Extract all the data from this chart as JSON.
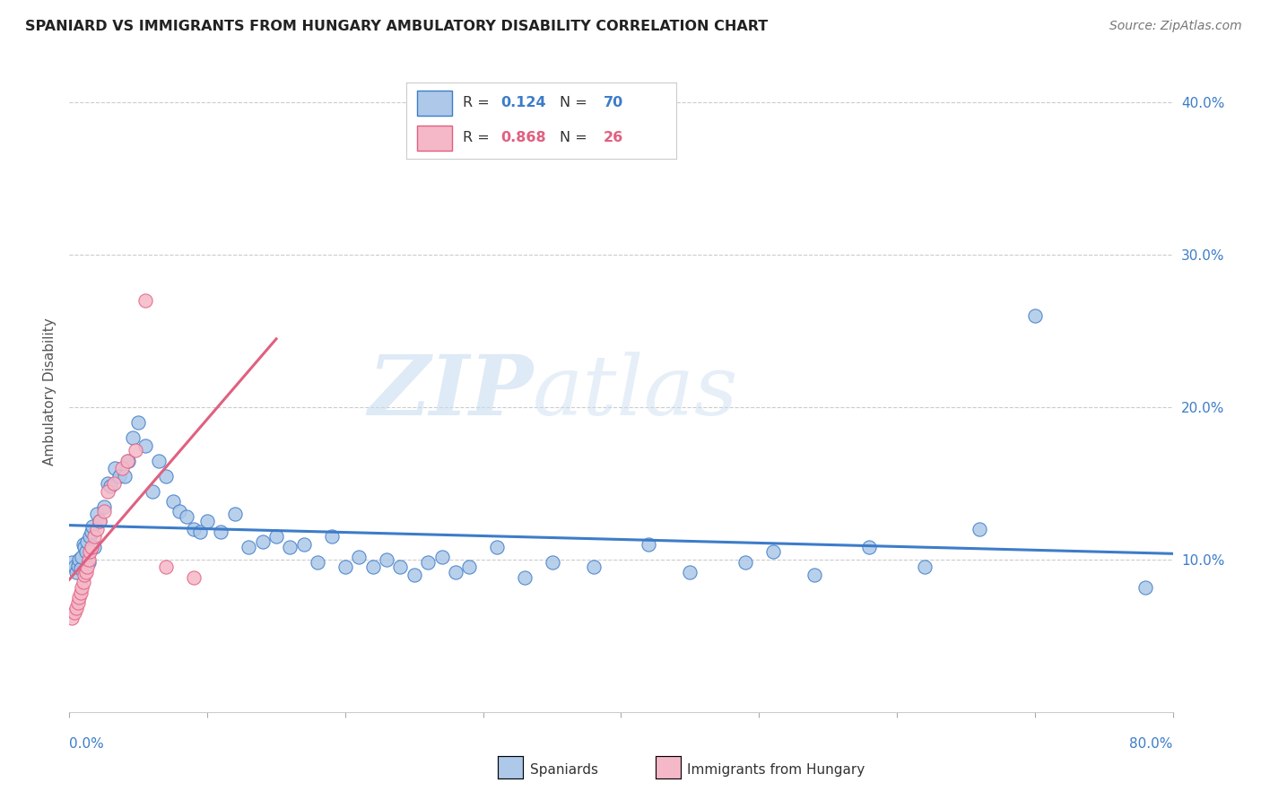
{
  "title": "SPANIARD VS IMMIGRANTS FROM HUNGARY AMBULATORY DISABILITY CORRELATION CHART",
  "source": "Source: ZipAtlas.com",
  "ylabel": "Ambulatory Disability",
  "legend_spaniards": "Spaniards",
  "legend_hungary": "Immigrants from Hungary",
  "r_spaniards": "0.124",
  "n_spaniards": "70",
  "r_hungary": "0.868",
  "n_hungary": "26",
  "spaniards_color": "#adc8e8",
  "hungary_color": "#f5b8c8",
  "spaniards_line_color": "#3d7cc9",
  "hungary_line_color": "#e06080",
  "watermark_zip": "ZIP",
  "watermark_atlas": "atlas",
  "xlim": [
    0.0,
    0.8
  ],
  "ylim": [
    0.0,
    0.42
  ],
  "yticks": [
    0.1,
    0.2,
    0.3,
    0.4
  ],
  "ytick_labels": [
    "10.0%",
    "20.0%",
    "30.0%",
    "40.0%"
  ],
  "spaniards_x": [
    0.002,
    0.004,
    0.005,
    0.006,
    0.007,
    0.008,
    0.009,
    0.01,
    0.011,
    0.012,
    0.013,
    0.014,
    0.015,
    0.016,
    0.017,
    0.018,
    0.02,
    0.022,
    0.025,
    0.028,
    0.03,
    0.033,
    0.036,
    0.04,
    0.043,
    0.046,
    0.05,
    0.055,
    0.06,
    0.065,
    0.07,
    0.075,
    0.08,
    0.085,
    0.09,
    0.095,
    0.1,
    0.11,
    0.12,
    0.13,
    0.14,
    0.15,
    0.16,
    0.17,
    0.18,
    0.19,
    0.2,
    0.21,
    0.22,
    0.23,
    0.24,
    0.25,
    0.26,
    0.27,
    0.28,
    0.29,
    0.31,
    0.33,
    0.35,
    0.38,
    0.42,
    0.45,
    0.49,
    0.51,
    0.54,
    0.58,
    0.62,
    0.66,
    0.7,
    0.78
  ],
  "spaniards_y": [
    0.098,
    0.095,
    0.092,
    0.096,
    0.1,
    0.094,
    0.102,
    0.11,
    0.108,
    0.105,
    0.112,
    0.098,
    0.115,
    0.118,
    0.122,
    0.108,
    0.13,
    0.125,
    0.135,
    0.15,
    0.148,
    0.16,
    0.155,
    0.155,
    0.165,
    0.18,
    0.19,
    0.175,
    0.145,
    0.165,
    0.155,
    0.138,
    0.132,
    0.128,
    0.12,
    0.118,
    0.125,
    0.118,
    0.13,
    0.108,
    0.112,
    0.115,
    0.108,
    0.11,
    0.098,
    0.115,
    0.095,
    0.102,
    0.095,
    0.1,
    0.095,
    0.09,
    0.098,
    0.102,
    0.092,
    0.095,
    0.108,
    0.088,
    0.098,
    0.095,
    0.11,
    0.092,
    0.098,
    0.105,
    0.09,
    0.108,
    0.095,
    0.12,
    0.26,
    0.082
  ],
  "hungary_x": [
    0.002,
    0.004,
    0.005,
    0.006,
    0.007,
    0.008,
    0.009,
    0.01,
    0.011,
    0.012,
    0.013,
    0.014,
    0.015,
    0.016,
    0.018,
    0.02,
    0.022,
    0.025,
    0.028,
    0.032,
    0.038,
    0.042,
    0.048,
    0.055,
    0.07,
    0.09
  ],
  "hungary_y": [
    0.062,
    0.065,
    0.068,
    0.072,
    0.075,
    0.078,
    0.082,
    0.085,
    0.09,
    0.092,
    0.095,
    0.1,
    0.105,
    0.108,
    0.115,
    0.12,
    0.125,
    0.132,
    0.145,
    0.15,
    0.16,
    0.165,
    0.172,
    0.27,
    0.095,
    0.088
  ]
}
